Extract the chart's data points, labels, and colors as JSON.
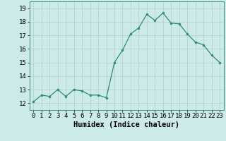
{
  "x": [
    0,
    1,
    2,
    3,
    4,
    5,
    6,
    7,
    8,
    9,
    10,
    11,
    12,
    13,
    14,
    15,
    16,
    17,
    18,
    19,
    20,
    21,
    22,
    23
  ],
  "y": [
    12.1,
    12.6,
    12.5,
    13.0,
    12.5,
    13.0,
    12.9,
    12.6,
    12.6,
    12.4,
    15.0,
    15.9,
    17.1,
    17.55,
    18.55,
    18.1,
    18.65,
    17.9,
    17.85,
    17.1,
    16.5,
    16.3,
    15.55,
    15.0
  ],
  "xlabel": "Humidex (Indice chaleur)",
  "xlim": [
    -0.5,
    23.5
  ],
  "ylim": [
    11.5,
    19.5
  ],
  "yticks": [
    12,
    13,
    14,
    15,
    16,
    17,
    18,
    19
  ],
  "xticks": [
    0,
    1,
    2,
    3,
    4,
    5,
    6,
    7,
    8,
    9,
    10,
    11,
    12,
    13,
    14,
    15,
    16,
    17,
    18,
    19,
    20,
    21,
    22,
    23
  ],
  "line_color": "#2e8b74",
  "marker_color": "#2e8b74",
  "bg_color": "#cceae8",
  "grid_color": "#b0ccca",
  "label_fontsize": 7.5,
  "tick_fontsize": 6.5
}
